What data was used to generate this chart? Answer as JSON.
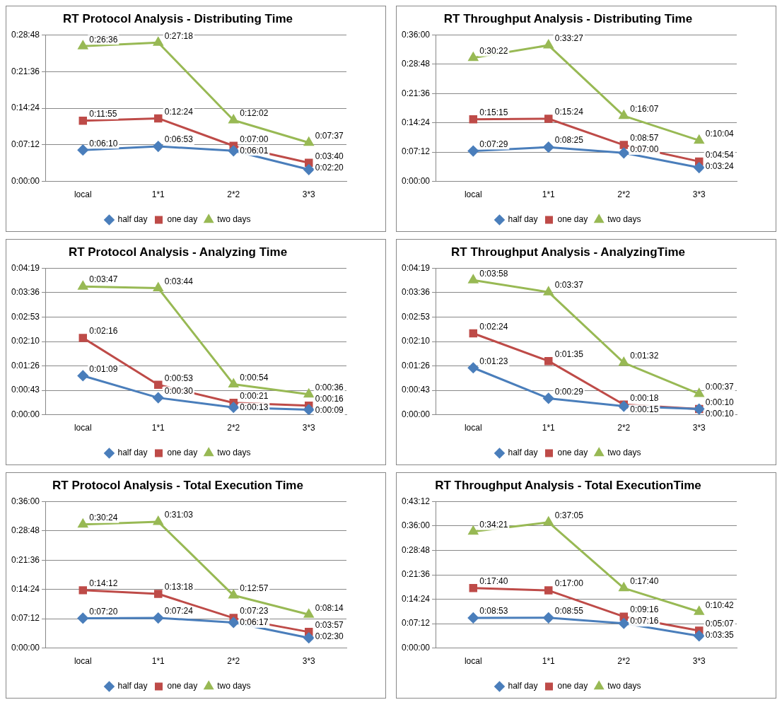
{
  "chart_data": [
    {
      "type": "line",
      "title": "RT Protocol Analysis - Distributing Time",
      "categories": [
        "local",
        "1*1",
        "2*2",
        "3*3"
      ],
      "ylim": [
        0,
        1728
      ],
      "yticks": [
        {
          "value": 0,
          "label": "0:00:00"
        },
        {
          "value": 432,
          "label": "0:07:12"
        },
        {
          "value": 864,
          "label": "0:14:24"
        },
        {
          "value": 1296,
          "label": "0:21:36"
        },
        {
          "value": 1728,
          "label": "0:28:48"
        }
      ],
      "grid": "y",
      "legend": "bottom",
      "series": [
        {
          "name": "half day",
          "color": "#4a7ebb",
          "marker": "diamond",
          "values": [
            370,
            413,
            361,
            140
          ],
          "value_labels": [
            "0:06:10",
            "0:06:53",
            "0:06:01",
            "0:02:20"
          ]
        },
        {
          "name": "one day",
          "color": "#be4b48",
          "marker": "square",
          "values": [
            715,
            744,
            420,
            220
          ],
          "value_labels": [
            "0:11:55",
            "0:12:24",
            "0:07:00",
            "0:03:40"
          ]
        },
        {
          "name": "two days",
          "color": "#98b954",
          "marker": "triangle",
          "values": [
            1596,
            1638,
            722,
            457
          ],
          "value_labels": [
            "0:26:36",
            "0:27:18",
            "0:12:02",
            "0:07:37"
          ]
        }
      ]
    },
    {
      "type": "line",
      "title": "RT Throughput Analysis - Distributing Time",
      "categories": [
        "local",
        "1*1",
        "2*2",
        "3*3"
      ],
      "ylim": [
        0,
        2160
      ],
      "yticks": [
        {
          "value": 0,
          "label": "0:00:00"
        },
        {
          "value": 432,
          "label": "0:07:12"
        },
        {
          "value": 864,
          "label": "0:14:24"
        },
        {
          "value": 1296,
          "label": "0:21:36"
        },
        {
          "value": 1728,
          "label": "0:28:48"
        },
        {
          "value": 2160,
          "label": "0:36:00"
        }
      ],
      "grid": "y",
      "legend": "bottom",
      "series": [
        {
          "name": "half day",
          "color": "#4a7ebb",
          "marker": "diamond",
          "values": [
            449,
            505,
            420,
            204
          ],
          "value_labels": [
            "0:07:29",
            "0:08:25",
            "0:07:00",
            "0:03:24"
          ]
        },
        {
          "name": "one day",
          "color": "#be4b48",
          "marker": "square",
          "values": [
            915,
            924,
            537,
            294
          ],
          "value_labels": [
            "0:15:15",
            "0:15:24",
            "0:08:57",
            "0:04:54"
          ]
        },
        {
          "name": "two days",
          "color": "#98b954",
          "marker": "triangle",
          "values": [
            1822,
            2007,
            967,
            604
          ],
          "value_labels": [
            "0:30:22",
            "0:33:27",
            "0:16:07",
            "0:10:04"
          ]
        }
      ]
    },
    {
      "type": "line",
      "title": "RT Protocol Analysis - Analyzing Time",
      "categories": [
        "local",
        "1*1",
        "2*2",
        "3*3"
      ],
      "ylim": [
        0,
        259.2
      ],
      "yticks": [
        {
          "value": 0,
          "label": "0:00:00"
        },
        {
          "value": 43.2,
          "label": "0:00:43"
        },
        {
          "value": 86.4,
          "label": "0:01:26"
        },
        {
          "value": 129.6,
          "label": "0:02:10"
        },
        {
          "value": 172.8,
          "label": "0:02:53"
        },
        {
          "value": 216,
          "label": "0:03:36"
        },
        {
          "value": 259.2,
          "label": "0:04:19"
        }
      ],
      "grid": "y",
      "legend": "bottom",
      "series": [
        {
          "name": "half day",
          "color": "#4a7ebb",
          "marker": "diamond",
          "values": [
            69,
            30,
            13,
            9
          ],
          "value_labels": [
            "0:01:09",
            "0:00:30",
            "0:00:13",
            "0:00:09"
          ]
        },
        {
          "name": "one day",
          "color": "#be4b48",
          "marker": "square",
          "values": [
            136,
            53,
            21,
            16
          ],
          "value_labels": [
            "0:02:16",
            "0:00:53",
            "0:00:21",
            "0:00:16"
          ]
        },
        {
          "name": "two days",
          "color": "#98b954",
          "marker": "triangle",
          "values": [
            227,
            224,
            54,
            36
          ],
          "value_labels": [
            "0:03:47",
            "0:03:44",
            "0:00:54",
            "0:00:36"
          ]
        }
      ]
    },
    {
      "type": "line",
      "title": "RT Throughput Analysis - AnalyzingTime",
      "categories": [
        "local",
        "1*1",
        "2*2",
        "3*3"
      ],
      "ylim": [
        0,
        259.2
      ],
      "yticks": [
        {
          "value": 0,
          "label": "0:00:00"
        },
        {
          "value": 43.2,
          "label": "0:00:43"
        },
        {
          "value": 86.4,
          "label": "0:01:26"
        },
        {
          "value": 129.6,
          "label": "0:02:10"
        },
        {
          "value": 172.8,
          "label": "0:02:53"
        },
        {
          "value": 216,
          "label": "0:03:36"
        },
        {
          "value": 259.2,
          "label": "0:04:19"
        }
      ],
      "grid": "y",
      "legend": "bottom",
      "series": [
        {
          "name": "half day",
          "color": "#4a7ebb",
          "marker": "diamond",
          "values": [
            83,
            29,
            15,
            10
          ],
          "value_labels": [
            "0:01:23",
            "0:00:29",
            "0:00:15",
            "0:00:10"
          ]
        },
        {
          "name": "one day",
          "color": "#be4b48",
          "marker": "square",
          "values": [
            144,
            95,
            18,
            10
          ],
          "value_labels": [
            "0:02:24",
            "0:01:35",
            "0:00:18",
            "0:00:10"
          ]
        },
        {
          "name": "two days",
          "color": "#98b954",
          "marker": "triangle",
          "values": [
            238,
            217,
            92,
            37
          ],
          "value_labels": [
            "0:03:58",
            "0:03:37",
            "0:01:32",
            "0:00:37"
          ]
        }
      ]
    },
    {
      "type": "line",
      "title": "RT Protocol Analysis - Total Execution Time",
      "categories": [
        "local",
        "1*1",
        "2*2",
        "3*3"
      ],
      "ylim": [
        0,
        2160
      ],
      "yticks": [
        {
          "value": 0,
          "label": "0:00:00"
        },
        {
          "value": 432,
          "label": "0:07:12"
        },
        {
          "value": 864,
          "label": "0:14:24"
        },
        {
          "value": 1296,
          "label": "0:21:36"
        },
        {
          "value": 1728,
          "label": "0:28:48"
        },
        {
          "value": 2160,
          "label": "0:36:00"
        }
      ],
      "grid": "y",
      "legend": "bottom",
      "series": [
        {
          "name": "half day",
          "color": "#4a7ebb",
          "marker": "diamond",
          "values": [
            440,
            444,
            377,
            150
          ],
          "value_labels": [
            "0:07:20",
            "0:07:24",
            "0:06:17",
            "0:02:30"
          ]
        },
        {
          "name": "one day",
          "color": "#be4b48",
          "marker": "square",
          "values": [
            852,
            798,
            443,
            237
          ],
          "value_labels": [
            "0:14:12",
            "0:13:18",
            "0:07:23",
            "0:03:57"
          ]
        },
        {
          "name": "two days",
          "color": "#98b954",
          "marker": "triangle",
          "values": [
            1824,
            1863,
            777,
            494
          ],
          "value_labels": [
            "0:30:24",
            "0:31:03",
            "0:12:57",
            "0:08:14"
          ]
        }
      ]
    },
    {
      "type": "line",
      "title": "RT Throughput Analysis - Total ExecutionTime",
      "categories": [
        "local",
        "1*1",
        "2*2",
        "3*3"
      ],
      "ylim": [
        0,
        2592
      ],
      "yticks": [
        {
          "value": 0,
          "label": "0:00:00"
        },
        {
          "value": 432,
          "label": "0:07:12"
        },
        {
          "value": 864,
          "label": "0:14:24"
        },
        {
          "value": 1296,
          "label": "0:21:36"
        },
        {
          "value": 1728,
          "label": "0:28:48"
        },
        {
          "value": 2160,
          "label": "0:36:00"
        },
        {
          "value": 2592,
          "label": "0:43:12"
        }
      ],
      "grid": "y",
      "legend": "bottom",
      "series": [
        {
          "name": "half day",
          "color": "#4a7ebb",
          "marker": "diamond",
          "values": [
            533,
            535,
            436,
            215
          ],
          "value_labels": [
            "0:08:53",
            "0:08:55",
            "0:07:16",
            "0:03:35"
          ]
        },
        {
          "name": "one day",
          "color": "#be4b48",
          "marker": "square",
          "values": [
            1060,
            1020,
            556,
            307
          ],
          "value_labels": [
            "0:17:40",
            "0:17:00",
            "0:09:16",
            "0:05:07"
          ]
        },
        {
          "name": "two days",
          "color": "#98b954",
          "marker": "triangle",
          "values": [
            2061,
            2225,
            1060,
            642
          ],
          "value_labels": [
            "0:34:21",
            "0:37:05",
            "0:17:40",
            "0:10:42"
          ]
        }
      ]
    }
  ]
}
